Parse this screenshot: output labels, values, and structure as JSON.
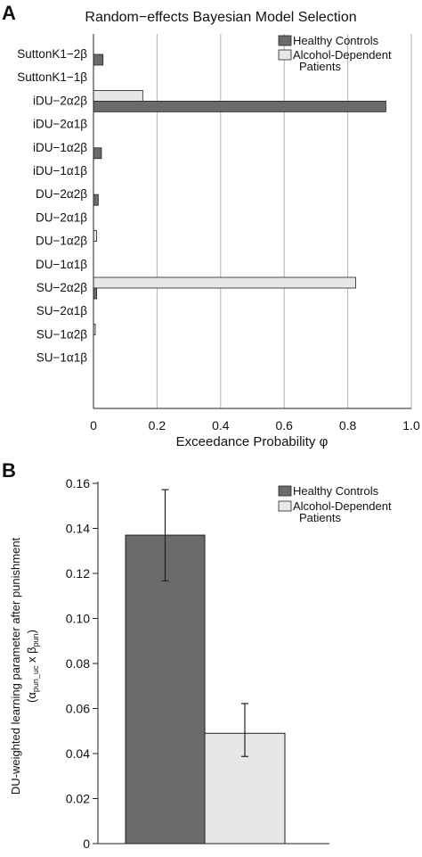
{
  "panels": {
    "a": {
      "letter": "A"
    },
    "b": {
      "letter": "B"
    }
  },
  "colors": {
    "healthy": "#6b6b6d",
    "alcohol": "#e6e7e9",
    "edge": "#222222",
    "grid": "#b0b0b0"
  },
  "chart_data": [
    {
      "type": "bar",
      "orientation": "horizontal",
      "title": "Random−effects Bayesian Model Selection",
      "xlabel": "Exceedance Probability φ",
      "xlim": [
        0,
        1
      ],
      "xticks": [
        "0",
        "0.2",
        "0.4",
        "0.6",
        "0.8",
        "1.0"
      ],
      "grid": "vertical",
      "legend_position": "top-right",
      "legend": [
        "Healthy Controls",
        "Alcohol-Dependent",
        "Patients"
      ],
      "categories": [
        "SuttonK1−2β",
        "SuttonK1−1β",
        "iDU−2α2β",
        "iDU−2α1β",
        "iDU−1α2β",
        "iDU−1α1β",
        "DU−2α2β",
        "DU−2α1β",
        "DU−1α2β",
        "DU−1α1β",
        "SU−2α2β",
        "SU−2α1β",
        "SU−1α2β",
        "SU−1α1β"
      ],
      "series": [
        {
          "name": "Healthy Controls",
          "values": [
            0.03,
            0.0,
            0.92,
            0.0,
            0.025,
            0.0,
            0.015,
            0.0,
            0.0,
            0.0,
            0.01,
            0.0,
            0.0,
            0.0
          ]
        },
        {
          "name": "Alcohol-Dependent Patients",
          "values": [
            0.0,
            0.0,
            0.155,
            0.0,
            0.0,
            0.0,
            0.0,
            0.0,
            0.01,
            0.0,
            0.825,
            0.0,
            0.005,
            0.0
          ]
        }
      ]
    },
    {
      "type": "bar",
      "ylabel": "DU-weighted learning parameter after punishment",
      "ylabel2": "(αpun_uc x βpun)",
      "ylim": [
        0,
        0.16
      ],
      "yticks": [
        "0",
        "0.02",
        "0.04",
        "0.06",
        "0.08",
        "0.10",
        "0.12",
        "0.14",
        "0.16"
      ],
      "legend_position": "top-right",
      "legend": [
        "Healthy Controls",
        "Alcohol-Dependent",
        "Patients"
      ],
      "series": [
        {
          "name": "Healthy Controls",
          "values": [
            0.137
          ],
          "error": [
            0.137,
            0.0202
          ]
        },
        {
          "name": "Alcohol-Dependent Patients",
          "values": [
            0.049
          ],
          "error": [
            0.049,
            0.0117
          ]
        }
      ],
      "error_bars": {
        "healthy": [
          0.1167,
          0.1572
        ],
        "alcohol": [
          0.0387,
          0.0622
        ]
      }
    }
  ]
}
